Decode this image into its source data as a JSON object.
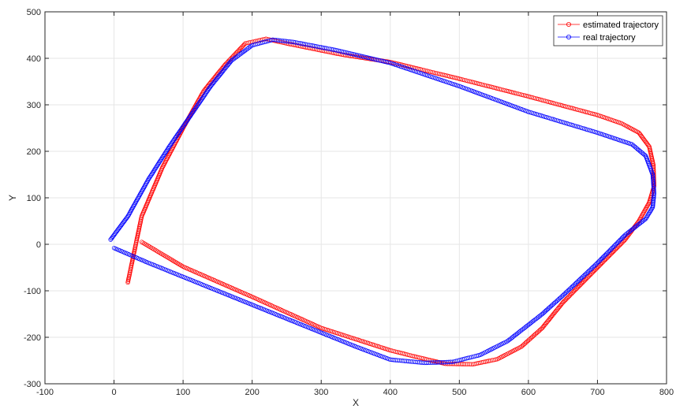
{
  "chart_data": {
    "type": "scatter",
    "title": "",
    "xlabel": "X",
    "ylabel": "Y",
    "xlim": [
      -100,
      800
    ],
    "ylim": [
      -300,
      500
    ],
    "xticks": [
      -100,
      0,
      100,
      200,
      300,
      400,
      500,
      600,
      700,
      800
    ],
    "yticks": [
      -300,
      -200,
      -100,
      0,
      100,
      200,
      300,
      400,
      500
    ],
    "grid": true,
    "legend_position": "top-right",
    "marker": "circle",
    "series": [
      {
        "name": "estimated trajectory",
        "color": "#ff0000",
        "points": [
          [
            20,
            -82
          ],
          [
            40,
            60
          ],
          [
            70,
            165
          ],
          [
            100,
            250
          ],
          [
            130,
            330
          ],
          [
            160,
            385
          ],
          [
            190,
            432
          ],
          [
            220,
            442
          ],
          [
            250,
            432
          ],
          [
            330,
            408
          ],
          [
            400,
            392
          ],
          [
            500,
            356
          ],
          [
            600,
            318
          ],
          [
            700,
            278
          ],
          [
            735,
            260
          ],
          [
            760,
            240
          ],
          [
            775,
            210
          ],
          [
            781,
            170
          ],
          [
            782,
            125
          ],
          [
            775,
            90
          ],
          [
            760,
            50
          ],
          [
            740,
            10
          ],
          [
            700,
            -50
          ],
          [
            650,
            -125
          ],
          [
            620,
            -180
          ],
          [
            590,
            -220
          ],
          [
            555,
            -247
          ],
          [
            520,
            -258
          ],
          [
            480,
            -257
          ],
          [
            440,
            -243
          ],
          [
            400,
            -228
          ],
          [
            300,
            -180
          ],
          [
            200,
            -113
          ],
          [
            100,
            -48
          ],
          [
            40,
            5
          ]
        ]
      },
      {
        "name": "real trajectory",
        "color": "#0000ff",
        "points": [
          [
            -5,
            10
          ],
          [
            20,
            60
          ],
          [
            50,
            140
          ],
          [
            80,
            210
          ],
          [
            110,
            275
          ],
          [
            140,
            340
          ],
          [
            170,
            395
          ],
          [
            200,
            428
          ],
          [
            230,
            440
          ],
          [
            260,
            435
          ],
          [
            320,
            418
          ],
          [
            400,
            390
          ],
          [
            500,
            340
          ],
          [
            600,
            285
          ],
          [
            700,
            240
          ],
          [
            750,
            215
          ],
          [
            770,
            190
          ],
          [
            780,
            150
          ],
          [
            782,
            110
          ],
          [
            780,
            80
          ],
          [
            770,
            55
          ],
          [
            740,
            20
          ],
          [
            700,
            -40
          ],
          [
            650,
            -110
          ],
          [
            620,
            -150
          ],
          [
            570,
            -208
          ],
          [
            530,
            -238
          ],
          [
            490,
            -253
          ],
          [
            450,
            -255
          ],
          [
            400,
            -248
          ],
          [
            350,
            -220
          ],
          [
            250,
            -160
          ],
          [
            150,
            -100
          ],
          [
            100,
            -70
          ],
          [
            50,
            -40
          ],
          [
            0,
            -8
          ]
        ]
      }
    ]
  }
}
